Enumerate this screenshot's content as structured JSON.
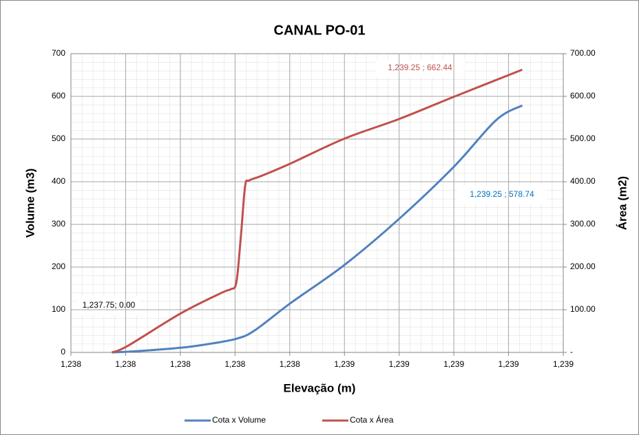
{
  "chart_data": {
    "type": "line",
    "title": "CANAL PO-01",
    "x_label": "Elevação (m)",
    "y_label": "Volume (m3)",
    "y2_label": "Área (m2)",
    "xlim": [
      1237.6,
      1239.4
    ],
    "xticks": [
      {
        "value": 1237.6,
        "label": "1,238"
      },
      {
        "value": 1237.8,
        "label": "1,238"
      },
      {
        "value": 1238.0,
        "label": "1,238"
      },
      {
        "value": 1238.2,
        "label": "1,238"
      },
      {
        "value": 1238.4,
        "label": "1,238"
      },
      {
        "value": 1238.6,
        "label": "1,239"
      },
      {
        "value": 1238.8,
        "label": "1,239"
      },
      {
        "value": 1239.0,
        "label": "1,239"
      },
      {
        "value": 1239.2,
        "label": "1,239"
      },
      {
        "value": 1239.4,
        "label": "1,239"
      }
    ],
    "ylim": [
      0,
      700
    ],
    "yticks": [
      0,
      100,
      200,
      300,
      400,
      500,
      600,
      700
    ],
    "y2lim": [
      0,
      700
    ],
    "y2ticks": [
      {
        "value": 0,
        "label": "-"
      },
      {
        "value": 100,
        "label": "100.00"
      },
      {
        "value": 200,
        "label": "200.00"
      },
      {
        "value": 300,
        "label": "300.00"
      },
      {
        "value": 400,
        "label": "400.00"
      },
      {
        "value": 500,
        "label": "500.00"
      },
      {
        "value": 600,
        "label": "600.00"
      },
      {
        "value": 700,
        "label": "700.00"
      }
    ],
    "grid": true,
    "legend": "bottom",
    "series": [
      {
        "name": "Cota x Volume",
        "color": "#4f81bd",
        "axis": "y",
        "x": [
          1237.75,
          1237.844,
          1238.003,
          1238.096,
          1238.205,
          1238.273,
          1238.404,
          1238.6,
          1238.8,
          1239.0,
          1239.154,
          1239.25
        ],
        "values": [
          0,
          3,
          11,
          19,
          32,
          52,
          116,
          205,
          313,
          435,
          544,
          578.74
        ]
      },
      {
        "name": "Cota x Área",
        "color": "#c0504d",
        "axis": "y2",
        "x": [
          1237.75,
          1237.807,
          1238.003,
          1238.152,
          1238.184,
          1238.205,
          1238.222,
          1238.237,
          1238.252,
          1238.298,
          1238.404,
          1238.6,
          1238.8,
          1239.0,
          1239.25
        ],
        "values": [
          0,
          15,
          92,
          140,
          148,
          165,
          277,
          390,
          403,
          414,
          443,
          501,
          547,
          599,
          662.44
        ]
      }
    ],
    "annotations": [
      "1,237.75; 0.00",
      "1,239.25 ;  662.44",
      "1,239.25 ;  578.74"
    ]
  }
}
